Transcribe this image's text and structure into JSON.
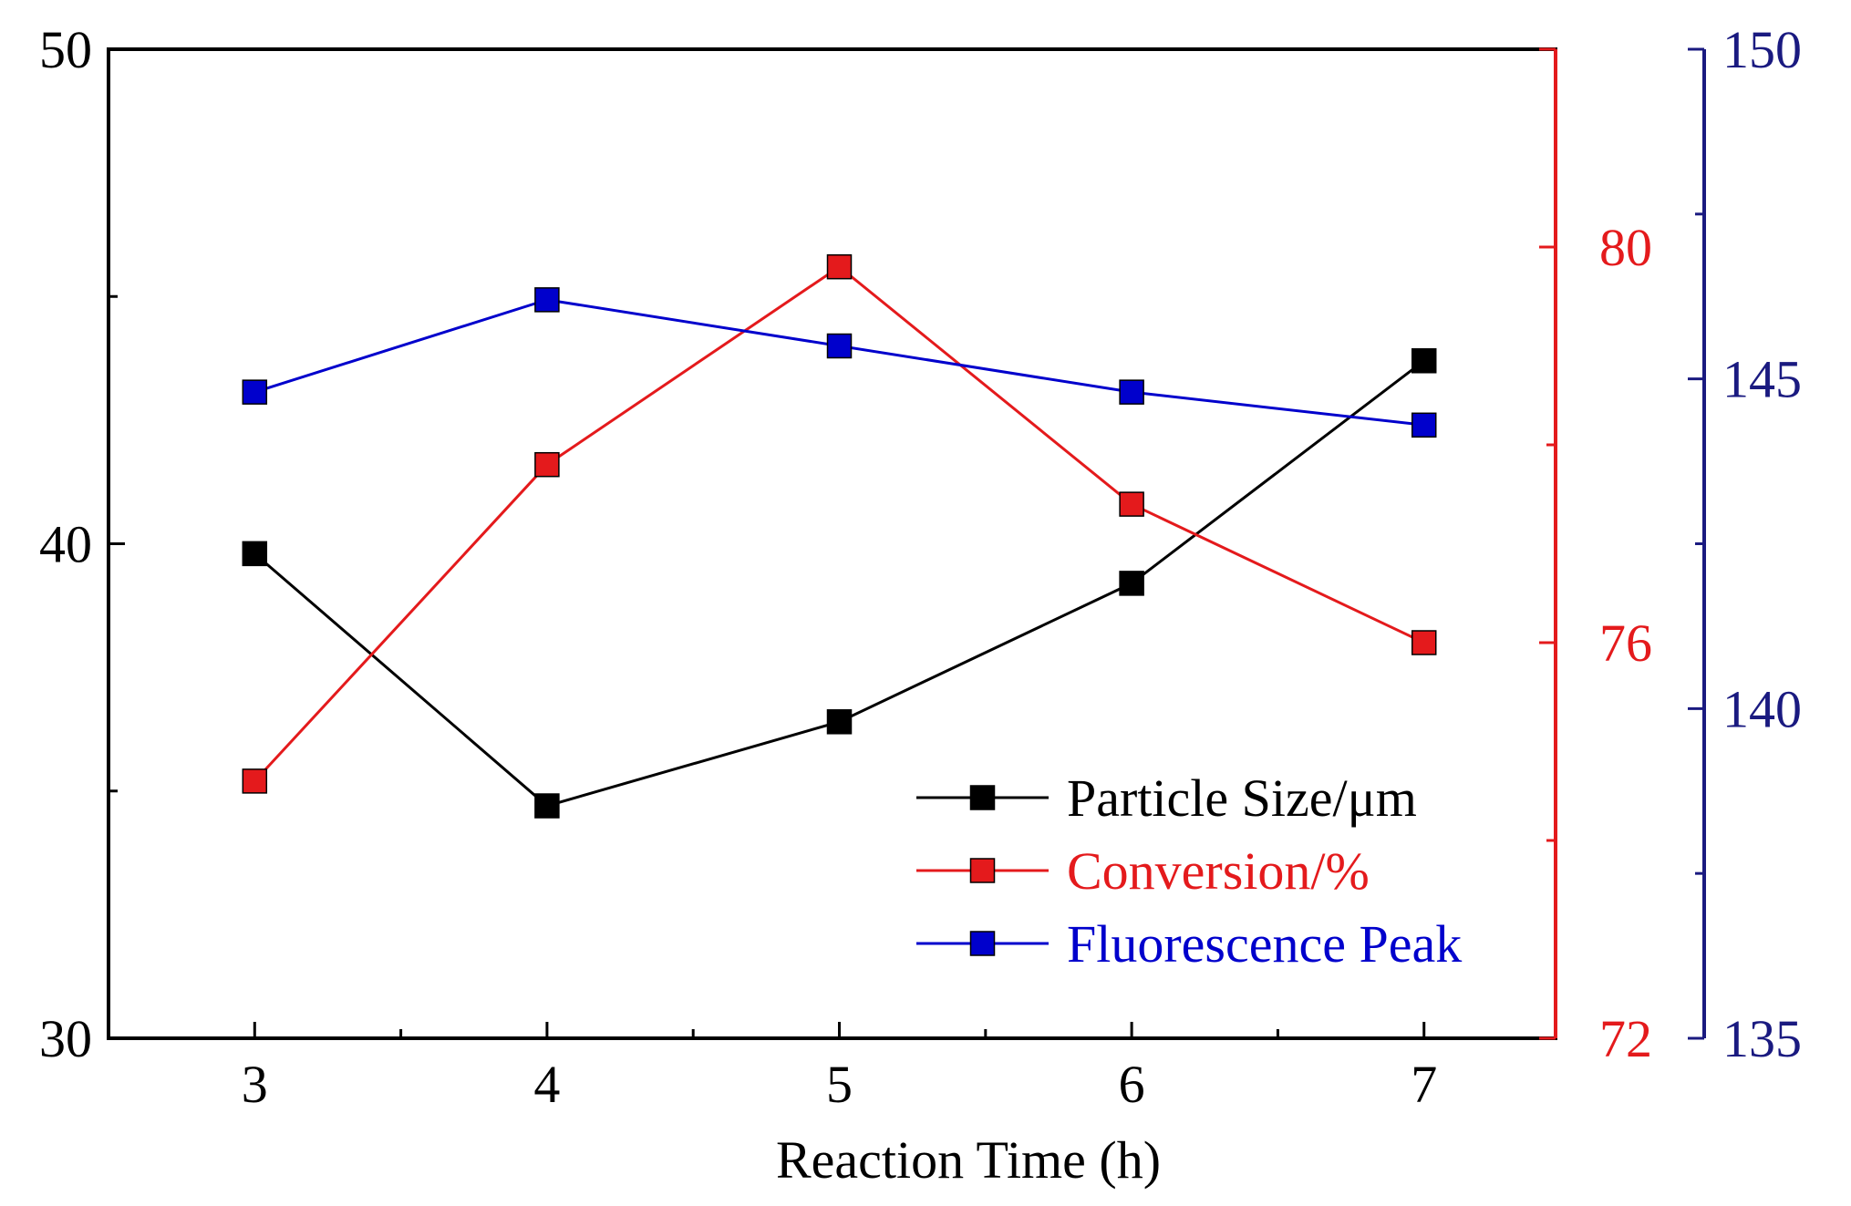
{
  "chart_data": {
    "type": "line",
    "x": [
      3,
      4,
      5,
      6,
      7
    ],
    "xlabel": "Reaction Time (h)",
    "xlim": [
      2.5,
      7.45
    ],
    "x_ticks": [
      3,
      4,
      5,
      6,
      7
    ],
    "series": [
      {
        "name": "Particle Size/μm",
        "axis": "left",
        "color": "#000000",
        "values": [
          39.8,
          34.7,
          36.4,
          39.2,
          43.7
        ]
      },
      {
        "name": "Conversion/%",
        "axis": "right-1",
        "color": "#e41a1c",
        "values": [
          74.6,
          77.8,
          79.8,
          77.4,
          76.0
        ]
      },
      {
        "name": "Fluorescence Peak",
        "axis": "right-2",
        "color": "#0000cc",
        "values": [
          144.8,
          146.2,
          145.5,
          144.8,
          144.3
        ]
      }
    ],
    "axes": {
      "left": {
        "range": [
          30,
          50
        ],
        "ticks": [
          30,
          40,
          50
        ],
        "color": "#000000"
      },
      "right-1": {
        "range": [
          72,
          82
        ],
        "ticks": [
          72,
          76,
          80
        ],
        "color": "#e41a1c"
      },
      "right-2": {
        "range": [
          135,
          150
        ],
        "ticks": [
          135,
          140,
          145,
          150
        ],
        "color": "#1a1a80"
      }
    },
    "legend": {
      "position": "bottom-right",
      "entries": [
        "Particle Size/μm",
        "Conversion/%",
        "Fluorescence Peak"
      ]
    },
    "grid": false
  }
}
